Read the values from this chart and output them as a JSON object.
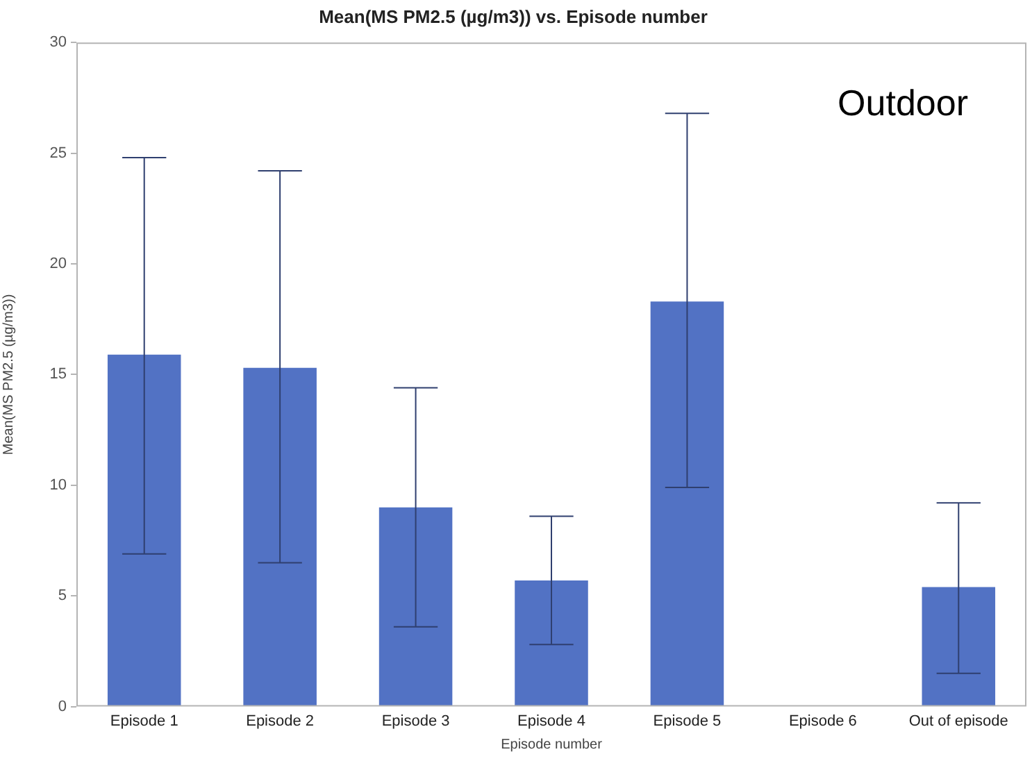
{
  "chart_data": {
    "type": "bar",
    "title": "Mean(MS PM2.5 (µg/m3)) vs. Episode number",
    "xlabel": "Episode number",
    "ylabel": "Mean(MS PM2.5 (µg/m3))",
    "annotations": [
      "Outdoor"
    ],
    "categories": [
      "Episode 1",
      "Episode 2",
      "Episode 3",
      "Episode 4",
      "Episode 5",
      "Episode 6",
      "Out of episode"
    ],
    "values": [
      15.9,
      15.3,
      9.0,
      5.7,
      18.3,
      null,
      5.4
    ],
    "errors": [
      [
        6.9,
        24.8
      ],
      [
        6.5,
        24.2
      ],
      [
        3.6,
        14.4
      ],
      [
        2.8,
        8.6
      ],
      [
        9.9,
        26.8
      ],
      null,
      [
        1.5,
        9.2
      ]
    ],
    "color": "#5272c4",
    "ylim": [
      0,
      30
    ],
    "yticks": [
      0,
      5,
      10,
      15,
      20,
      25,
      30
    ],
    "grid": false,
    "legend": false
  }
}
